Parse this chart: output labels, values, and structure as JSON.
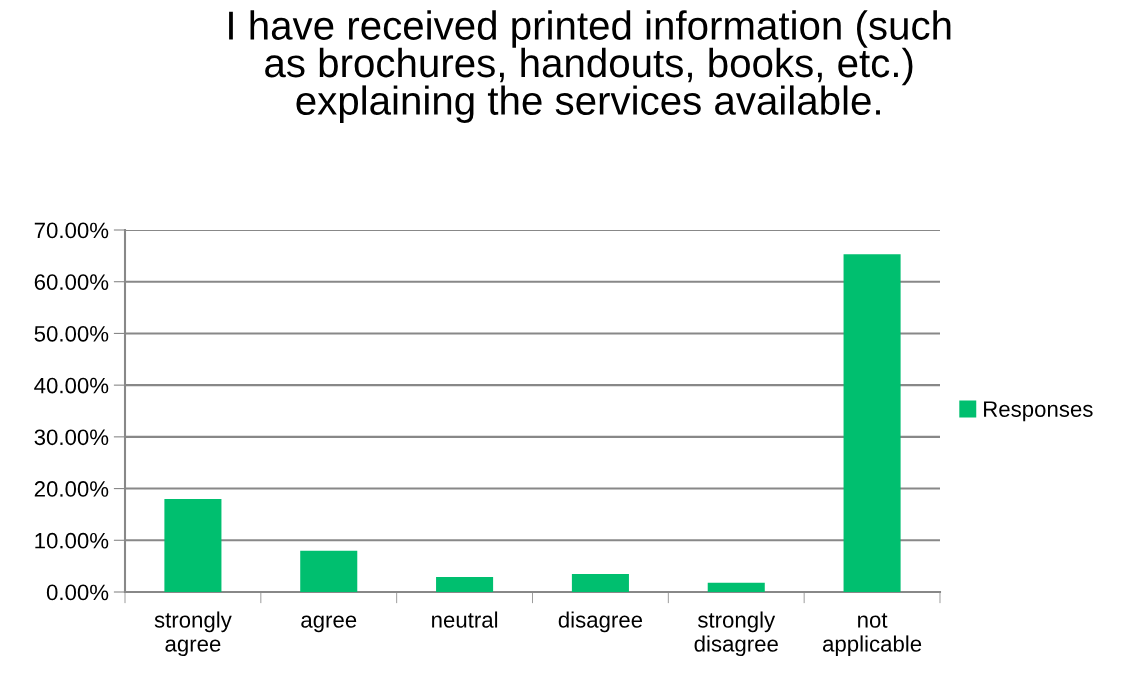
{
  "chart_data": {
    "type": "bar",
    "title": "I have received printed information (such\nas brochures, handouts, books, etc.)\nexplaining the services available.",
    "categories": [
      "strongly\nagree",
      "agree",
      "neutral",
      "disagree",
      "strongly\ndisagree",
      "not\napplicable"
    ],
    "series": [
      {
        "name": "Responses",
        "color": "#00bf6f",
        "values": [
          18.0,
          8.0,
          2.9,
          3.5,
          1.8,
          65.3
        ]
      }
    ],
    "ylim": [
      0,
      70
    ],
    "yticks": [
      {
        "value": 0,
        "label": "0.00%"
      },
      {
        "value": 10,
        "label": "10.00%"
      },
      {
        "value": 20,
        "label": "20.00%"
      },
      {
        "value": 30,
        "label": "30.00%"
      },
      {
        "value": 40,
        "label": "40.00%"
      },
      {
        "value": 50,
        "label": "50.00%"
      },
      {
        "value": 60,
        "label": "60.00%"
      },
      {
        "value": 70,
        "label": "70.00%"
      }
    ],
    "grid": "y",
    "legend": "right"
  }
}
